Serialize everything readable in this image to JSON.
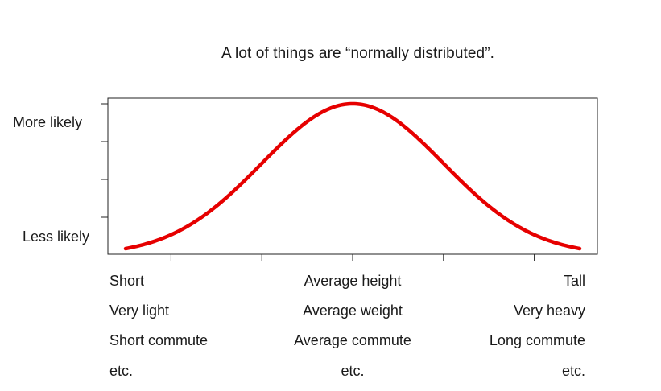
{
  "title": "A lot of things are “normally distributed”.",
  "chart_data": {
    "type": "line",
    "y_axis": {
      "top_label": "More likely",
      "bottom_label": "Less likely",
      "tick_count": 5
    },
    "x_axis": {
      "tick_count": 5,
      "label_rows": [
        {
          "left": "Short",
          "center": "Average height",
          "right": "Tall"
        },
        {
          "left": "Very light",
          "center": "Average weight",
          "right": "Very heavy"
        },
        {
          "left": "Short commute",
          "center": "Average commute",
          "right": "Long commute"
        },
        {
          "left": "etc.",
          "center": "etc.",
          "right": "etc."
        }
      ]
    },
    "series": [
      {
        "color": "#e60000",
        "x_range": [
          -2.5,
          2.5
        ],
        "mean": 0,
        "sd": 1,
        "ylim": [
          0.0175,
          0.3989
        ]
      }
    ]
  }
}
